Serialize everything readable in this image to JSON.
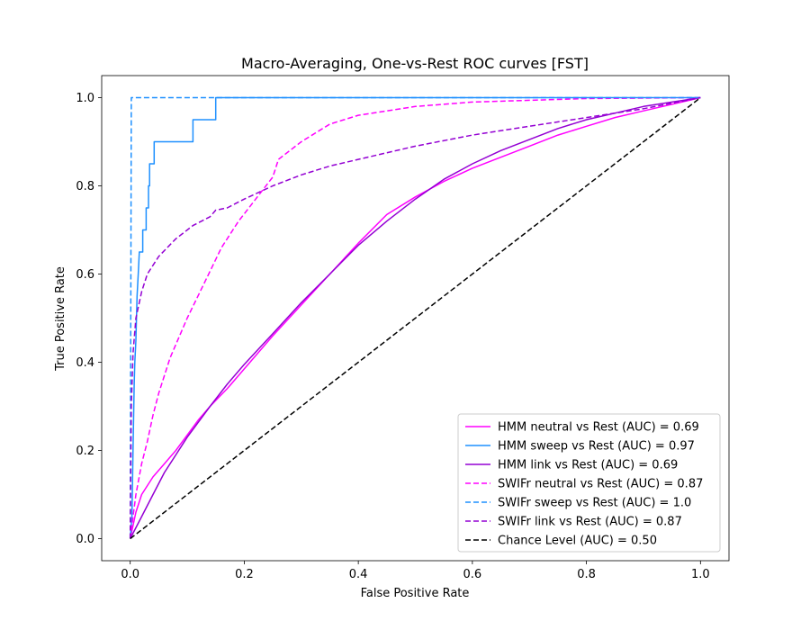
{
  "chart_data": {
    "type": "line",
    "title": "Macro-Averaging, One-vs-Rest ROC curves [FST]",
    "xlabel": "False Positive Rate",
    "ylabel": "True Positive Rate",
    "xlim": [
      -0.05,
      1.05
    ],
    "ylim": [
      -0.05,
      1.05
    ],
    "xticks": [
      "0.0",
      "0.2",
      "0.4",
      "0.6",
      "0.8",
      "1.0"
    ],
    "yticks": [
      "0.0",
      "0.2",
      "0.4",
      "0.6",
      "0.8",
      "1.0"
    ],
    "grid": false,
    "legend_position": "bottom-right",
    "series": [
      {
        "name": "HMM neutral vs Rest (AUC) = 0.69",
        "color": "#ff00ff",
        "style": "solid",
        "points": [
          [
            0,
            0
          ],
          [
            0.01,
            0.06
          ],
          [
            0.02,
            0.1
          ],
          [
            0.04,
            0.14
          ],
          [
            0.06,
            0.17
          ],
          [
            0.08,
            0.2
          ],
          [
            0.1,
            0.235
          ],
          [
            0.12,
            0.27
          ],
          [
            0.14,
            0.3
          ],
          [
            0.17,
            0.34
          ],
          [
            0.2,
            0.385
          ],
          [
            0.25,
            0.46
          ],
          [
            0.3,
            0.53
          ],
          [
            0.35,
            0.6
          ],
          [
            0.4,
            0.67
          ],
          [
            0.45,
            0.735
          ],
          [
            0.5,
            0.775
          ],
          [
            0.55,
            0.81
          ],
          [
            0.6,
            0.84
          ],
          [
            0.65,
            0.865
          ],
          [
            0.7,
            0.89
          ],
          [
            0.75,
            0.915
          ],
          [
            0.8,
            0.935
          ],
          [
            0.85,
            0.955
          ],
          [
            0.9,
            0.97
          ],
          [
            0.95,
            0.985
          ],
          [
            1.0,
            1.0
          ]
        ]
      },
      {
        "name": "HMM sweep vs Rest (AUC) = 0.97",
        "color": "#1e90ff",
        "style": "solid",
        "points": [
          [
            0,
            0
          ],
          [
            0.003,
            0.05
          ],
          [
            0.005,
            0.2
          ],
          [
            0.007,
            0.35
          ],
          [
            0.008,
            0.4
          ],
          [
            0.01,
            0.45
          ],
          [
            0.012,
            0.55
          ],
          [
            0.014,
            0.6
          ],
          [
            0.016,
            0.65
          ],
          [
            0.022,
            0.65
          ],
          [
            0.022,
            0.7
          ],
          [
            0.028,
            0.7
          ],
          [
            0.028,
            0.75
          ],
          [
            0.032,
            0.75
          ],
          [
            0.032,
            0.8
          ],
          [
            0.034,
            0.8
          ],
          [
            0.034,
            0.85
          ],
          [
            0.042,
            0.85
          ],
          [
            0.042,
            0.9
          ],
          [
            0.11,
            0.9
          ],
          [
            0.11,
            0.95
          ],
          [
            0.15,
            0.95
          ],
          [
            0.15,
            1.0
          ],
          [
            1.0,
            1.0
          ]
        ]
      },
      {
        "name": "HMM link vs Rest (AUC) = 0.69",
        "color": "#9400d3",
        "style": "solid",
        "points": [
          [
            0,
            0
          ],
          [
            0.02,
            0.05
          ],
          [
            0.04,
            0.1
          ],
          [
            0.06,
            0.15
          ],
          [
            0.08,
            0.19
          ],
          [
            0.1,
            0.23
          ],
          [
            0.12,
            0.265
          ],
          [
            0.14,
            0.3
          ],
          [
            0.17,
            0.35
          ],
          [
            0.2,
            0.395
          ],
          [
            0.25,
            0.465
          ],
          [
            0.3,
            0.535
          ],
          [
            0.35,
            0.6
          ],
          [
            0.4,
            0.665
          ],
          [
            0.45,
            0.72
          ],
          [
            0.5,
            0.77
          ],
          [
            0.55,
            0.815
          ],
          [
            0.6,
            0.85
          ],
          [
            0.65,
            0.88
          ],
          [
            0.7,
            0.905
          ],
          [
            0.75,
            0.93
          ],
          [
            0.8,
            0.95
          ],
          [
            0.85,
            0.965
          ],
          [
            0.9,
            0.98
          ],
          [
            0.95,
            0.99
          ],
          [
            1.0,
            1.0
          ]
        ]
      },
      {
        "name": "SWIFr neutral vs Rest (AUC) = 0.87",
        "color": "#ff00ff",
        "style": "dashed",
        "points": [
          [
            0,
            0
          ],
          [
            0.01,
            0.1
          ],
          [
            0.02,
            0.17
          ],
          [
            0.03,
            0.22
          ],
          [
            0.04,
            0.28
          ],
          [
            0.05,
            0.33
          ],
          [
            0.07,
            0.41
          ],
          [
            0.1,
            0.5
          ],
          [
            0.13,
            0.58
          ],
          [
            0.16,
            0.66
          ],
          [
            0.19,
            0.72
          ],
          [
            0.22,
            0.77
          ],
          [
            0.25,
            0.82
          ],
          [
            0.26,
            0.86
          ],
          [
            0.3,
            0.9
          ],
          [
            0.35,
            0.94
          ],
          [
            0.4,
            0.96
          ],
          [
            0.5,
            0.98
          ],
          [
            0.6,
            0.99
          ],
          [
            0.8,
            0.998
          ],
          [
            1.0,
            1.0
          ]
        ]
      },
      {
        "name": "SWIFr sweep vs Rest (AUC) = 1.0",
        "color": "#1e90ff",
        "style": "dashed",
        "points": [
          [
            0,
            0
          ],
          [
            0.002,
            1.0
          ],
          [
            1.0,
            1.0
          ]
        ]
      },
      {
        "name": "SWIFr link vs Rest (AUC) = 0.87",
        "color": "#9400d3",
        "style": "dashed",
        "points": [
          [
            0,
            0
          ],
          [
            0.002,
            0.3
          ],
          [
            0.005,
            0.42
          ],
          [
            0.01,
            0.5
          ],
          [
            0.02,
            0.56
          ],
          [
            0.03,
            0.6
          ],
          [
            0.05,
            0.64
          ],
          [
            0.08,
            0.68
          ],
          [
            0.11,
            0.71
          ],
          [
            0.14,
            0.73
          ],
          [
            0.15,
            0.745
          ],
          [
            0.17,
            0.75
          ],
          [
            0.2,
            0.77
          ],
          [
            0.25,
            0.8
          ],
          [
            0.3,
            0.825
          ],
          [
            0.35,
            0.845
          ],
          [
            0.4,
            0.86
          ],
          [
            0.5,
            0.89
          ],
          [
            0.6,
            0.915
          ],
          [
            0.7,
            0.935
          ],
          [
            0.8,
            0.955
          ],
          [
            0.9,
            0.975
          ],
          [
            1.0,
            1.0
          ]
        ]
      },
      {
        "name": "Chance Level (AUC) = 0.50",
        "color": "#000000",
        "style": "dashed",
        "points": [
          [
            0,
            0
          ],
          [
            1.0,
            1.0
          ]
        ]
      }
    ]
  }
}
